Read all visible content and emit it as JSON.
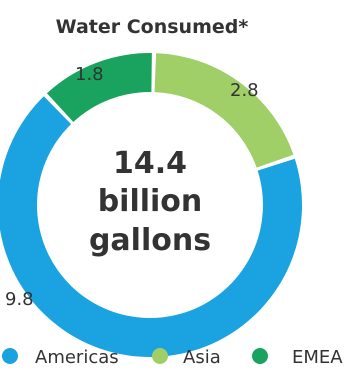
{
  "chart_data": {
    "type": "pie",
    "title": "Water Consumed*",
    "center_label_lines": [
      "14.4",
      "billion",
      "gallons"
    ],
    "categories": [
      "Americas",
      "Asia",
      "EMEA"
    ],
    "values": [
      9.8,
      2.8,
      1.8
    ],
    "data_labels": [
      "9.8",
      "2.8",
      "1.8"
    ],
    "colors": [
      "#1aa3e0",
      "#a0cf67",
      "#1aa25f"
    ],
    "legend": {
      "placement": "bottom",
      "entries": [
        "Americas",
        "Asia",
        "EMEA"
      ]
    },
    "donut": true
  }
}
